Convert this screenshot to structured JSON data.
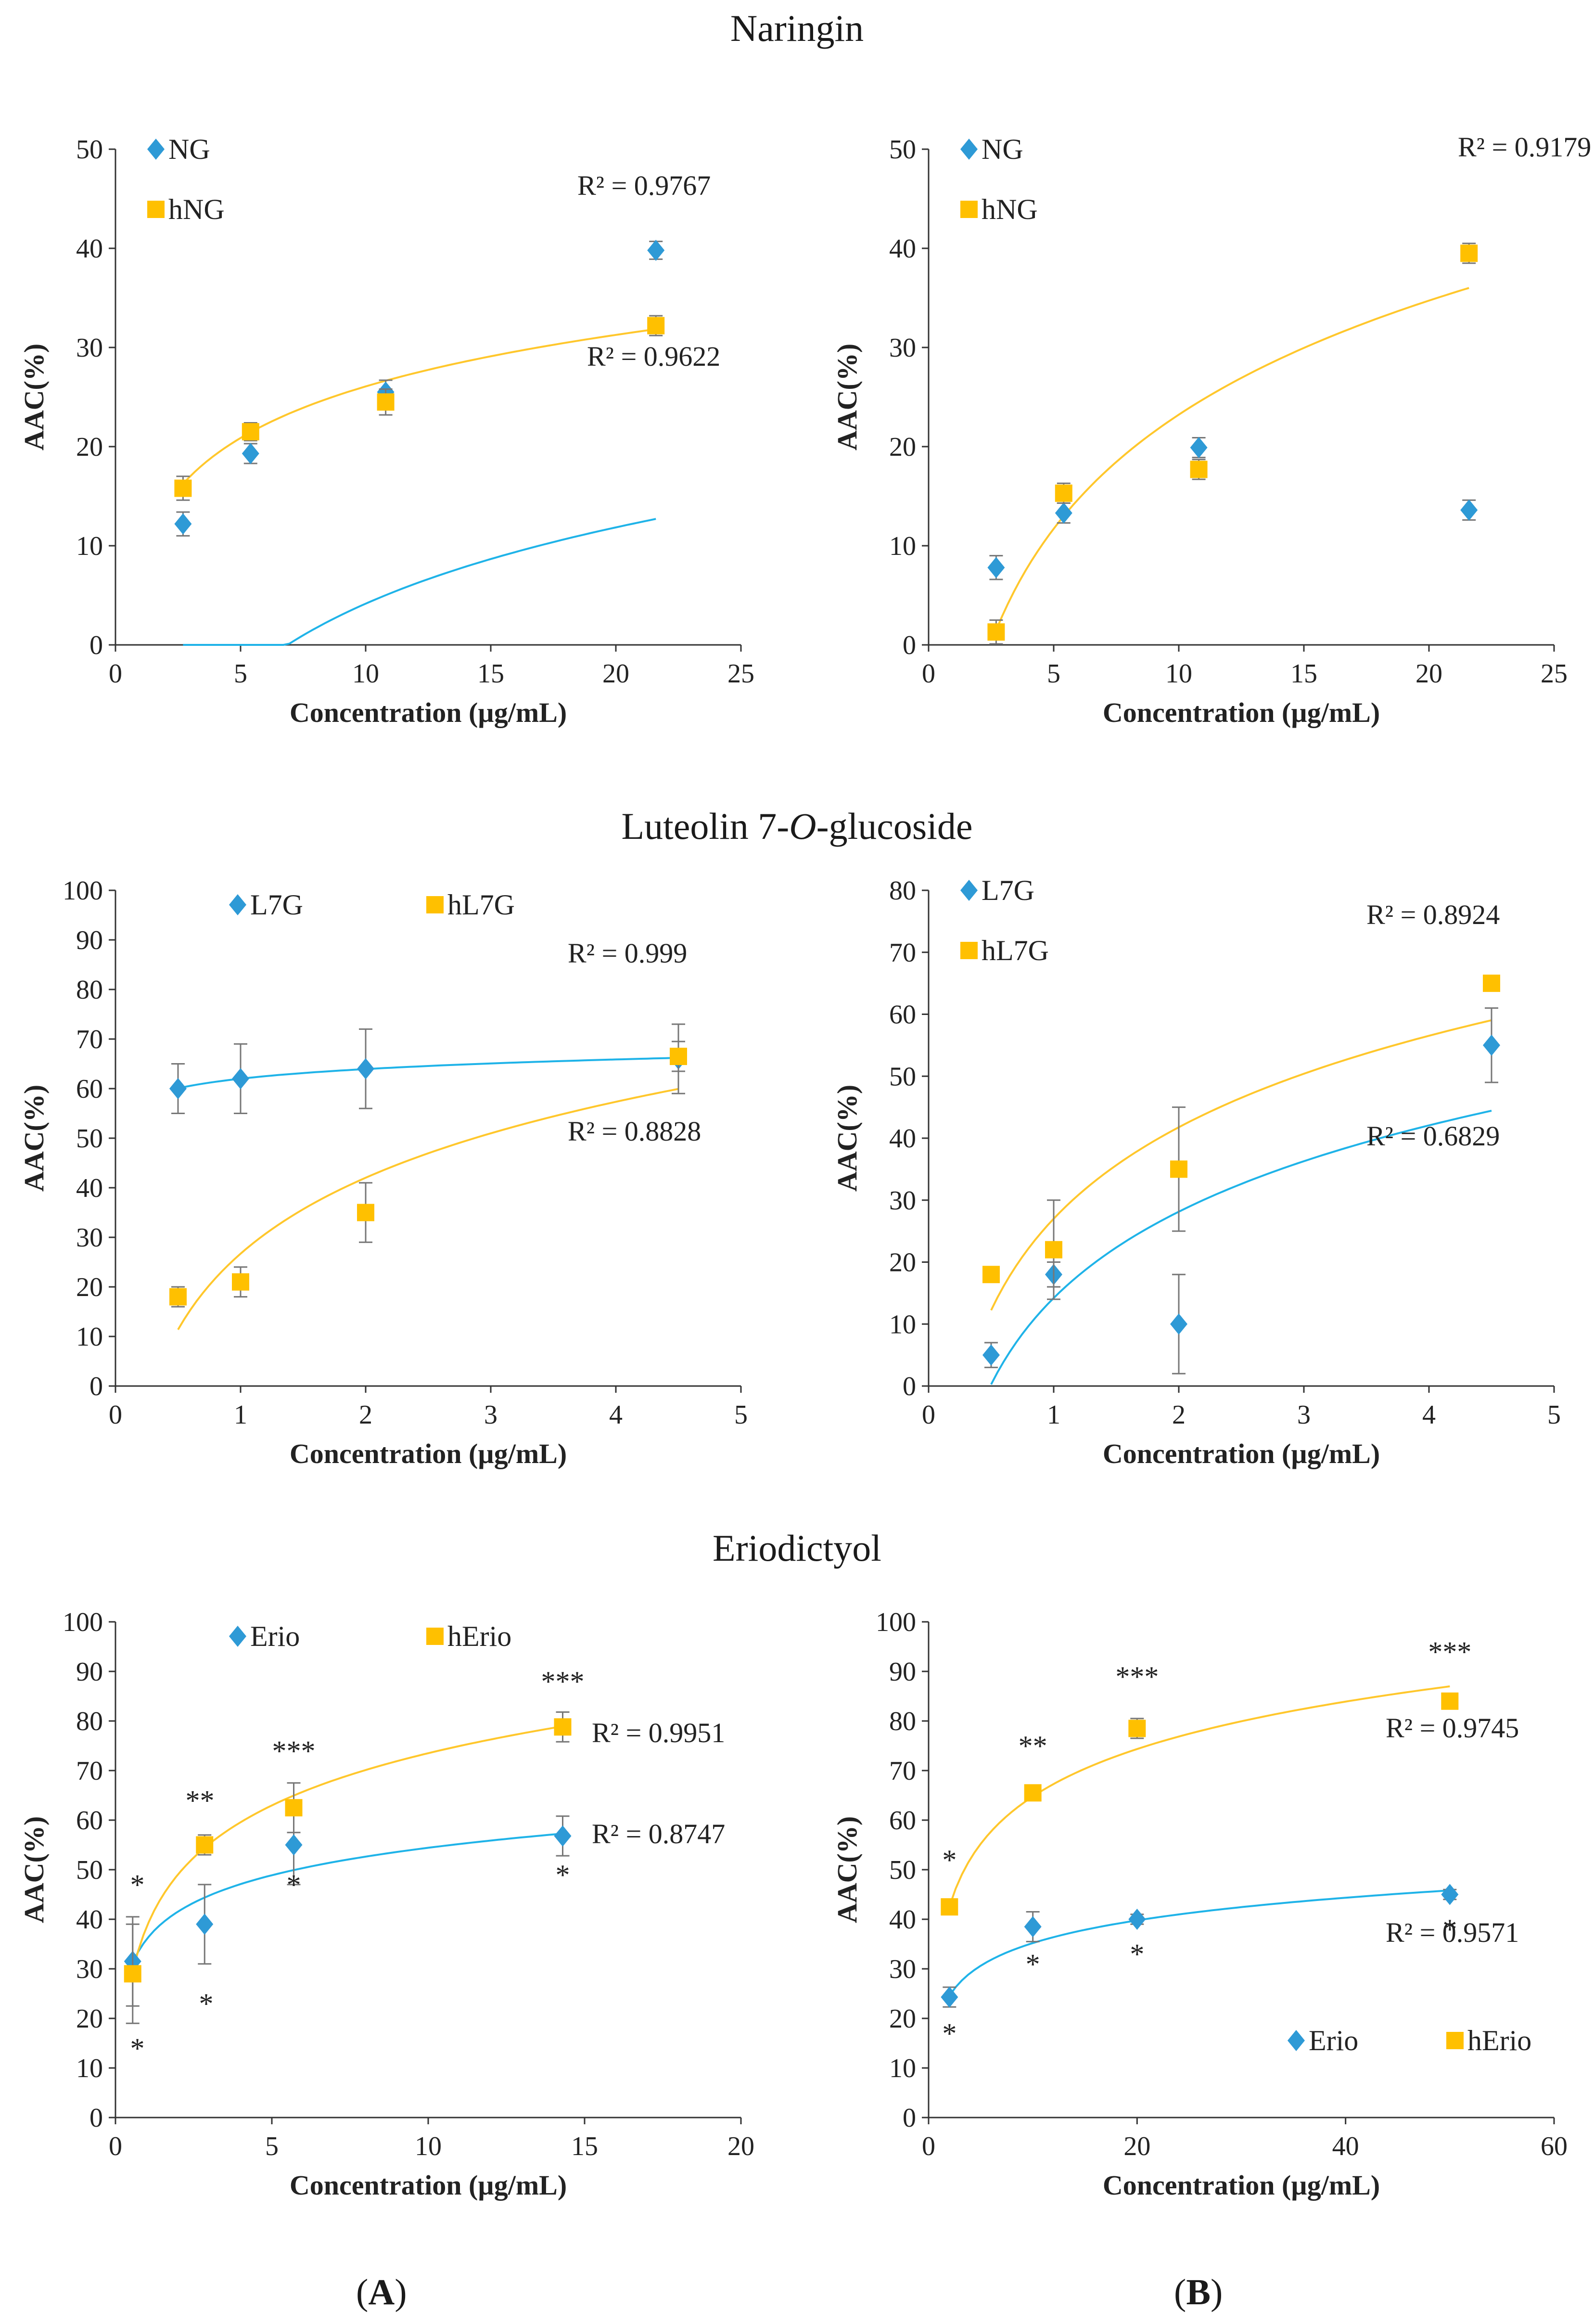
{
  "sections": [
    {
      "title": "Naringin"
    },
    {
      "title": "Luteolin 7-O-glucoside",
      "title_parts": [
        "Luteolin 7-",
        "O",
        "-glucoside"
      ]
    },
    {
      "title": "Eriodictyol"
    }
  ],
  "panel_letters": [
    "A",
    "B"
  ],
  "colors": {
    "blue": "#2E9AD6",
    "yellow": "#FFC000",
    "blue_fit": "#1FB3E8",
    "yellow_fit": "#FFC72C",
    "axis": "#333333",
    "error": "#777777"
  },
  "chart_data": [
    {
      "id": "naringin-A",
      "type": "scatter",
      "section": 0,
      "column": "A",
      "xlabel": "Concentration (µg/mL)",
      "ylabel": "AAC(%)",
      "xlim": [
        0,
        25
      ],
      "ylim": [
        0,
        50
      ],
      "xticks": [
        0,
        5,
        10,
        15,
        20,
        25
      ],
      "yticks": [
        0,
        10,
        20,
        30,
        40,
        50
      ],
      "legend_position": "top-left",
      "series": [
        {
          "name": "NG",
          "marker": "diamond",
          "color": "blue",
          "x": [
            2.7,
            5.4,
            10.8,
            21.6
          ],
          "y": [
            12.2,
            19.3,
            25.5,
            39.8
          ],
          "err": [
            1.2,
            1.0,
            1.2,
            0.9
          ],
          "r2": "R² = 0.9767",
          "fit": {
            "a": 11.1,
            "b": -21.4
          }
        },
        {
          "name": "hNG",
          "marker": "square",
          "color": "yellow",
          "x": [
            2.7,
            5.4,
            10.8,
            21.6
          ],
          "y": [
            15.8,
            21.5,
            24.5,
            32.2
          ],
          "err": [
            1.2,
            0.9,
            1.3,
            1.0
          ],
          "r2": "R² = 0.9622",
          "fit": {
            "a": 7.5,
            "b": 8.8
          }
        }
      ]
    },
    {
      "id": "naringin-B",
      "type": "scatter",
      "section": 0,
      "column": "B",
      "xlabel": "Concentration (µg/mL)",
      "ylabel": "AAC(%)",
      "xlim": [
        0,
        25
      ],
      "ylim": [
        0,
        50
      ],
      "xticks": [
        0,
        5,
        10,
        15,
        20,
        25
      ],
      "yticks": [
        0,
        10,
        20,
        30,
        40,
        50
      ],
      "legend_position": "top-left",
      "series": [
        {
          "name": "NG",
          "marker": "diamond",
          "color": "blue",
          "x": [
            2.7,
            5.4,
            10.8,
            21.6
          ],
          "y": [
            7.8,
            13.3,
            19.9,
            13.6
          ],
          "err": [
            1.2,
            1.0,
            1.0,
            1.0
          ]
        },
        {
          "name": "hNG",
          "marker": "square",
          "color": "yellow",
          "x": [
            2.7,
            5.4,
            10.8,
            21.6
          ],
          "y": [
            1.3,
            15.3,
            17.7,
            39.5
          ],
          "err": [
            1.2,
            1.0,
            1.0,
            1.0
          ],
          "r2": "R² = 0.9179",
          "fit": {
            "a": 16.6,
            "b": -15.0
          }
        }
      ]
    },
    {
      "id": "luteolin-A",
      "type": "scatter",
      "section": 1,
      "column": "A",
      "xlabel": "Concentration (µg/mL)",
      "ylabel": "AAC(%)",
      "xlim": [
        0,
        5
      ],
      "ylim": [
        0,
        100
      ],
      "xticks": [
        0,
        1,
        2,
        3,
        4,
        5
      ],
      "yticks": [
        0,
        10,
        20,
        30,
        40,
        50,
        60,
        70,
        80,
        90,
        100
      ],
      "legend_position": "top",
      "series": [
        {
          "name": "L7G",
          "marker": "diamond",
          "color": "blue",
          "x": [
            0.5,
            1.0,
            2.0,
            4.5
          ],
          "y": [
            60,
            62,
            64,
            66
          ],
          "err": [
            5,
            7,
            8,
            7
          ],
          "r2": "R² = 0.999",
          "fit": {
            "a": 2.8,
            "b": 62.0
          }
        },
        {
          "name": "hL7G",
          "marker": "square",
          "color": "yellow",
          "x": [
            0.5,
            1.0,
            2.0,
            4.5
          ],
          "y": [
            18,
            21,
            35,
            66.5
          ],
          "err": [
            2,
            3,
            6,
            3
          ],
          "r2": "R² = 0.8828",
          "fit": {
            "a": 22.1,
            "b": 26.7
          }
        }
      ]
    },
    {
      "id": "luteolin-B",
      "type": "scatter",
      "section": 1,
      "column": "B",
      "xlabel": "Concentration (µg/mL)",
      "ylabel": "AAC(%)",
      "xlim": [
        0,
        5
      ],
      "ylim": [
        0,
        80
      ],
      "xticks": [
        0,
        1,
        2,
        3,
        4,
        5
      ],
      "yticks": [
        0,
        10,
        20,
        30,
        40,
        50,
        60,
        70,
        80
      ],
      "legend_position": "top-left",
      "series": [
        {
          "name": "L7G",
          "marker": "diamond",
          "color": "blue",
          "x": [
            0.5,
            1.0,
            2.0,
            4.5
          ],
          "y": [
            5,
            18,
            10,
            55
          ],
          "err": [
            2,
            2,
            8,
            6
          ],
          "r2": "R² = 0.6829",
          "fit": {
            "a": 20.1,
            "b": 14.2
          }
        },
        {
          "name": "hL7G",
          "marker": "square",
          "color": "yellow",
          "x": [
            0.5,
            1.0,
            2.0,
            4.5
          ],
          "y": [
            18,
            22,
            35,
            65
          ],
          "err": [
            0,
            8,
            10,
            0
          ],
          "r2": "R² = 0.8924",
          "fit": {
            "a": 21.3,
            "b": 27.0
          }
        }
      ]
    },
    {
      "id": "eriodictyol-A",
      "type": "scatter",
      "section": 2,
      "column": "A",
      "xlabel": "Concentration (µg/mL)",
      "ylabel": "AAC(%)",
      "xlim": [
        0,
        20
      ],
      "ylim": [
        0,
        100
      ],
      "xticks": [
        0,
        5,
        10,
        15,
        20
      ],
      "yticks": [
        0,
        10,
        20,
        30,
        40,
        50,
        60,
        70,
        80,
        90,
        100
      ],
      "legend_position": "top",
      "series": [
        {
          "name": "Erio",
          "marker": "diamond",
          "color": "blue",
          "x": [
            0.55,
            2.85,
            5.7,
            14.3
          ],
          "y": [
            31.5,
            39,
            55,
            56.8
          ],
          "err": [
            9,
            8,
            8,
            4
          ],
          "r2": "R² = 0.8747",
          "fit": {
            "a": 8.0,
            "b": 36.0
          }
        },
        {
          "name": "hErio",
          "marker": "square",
          "color": "yellow",
          "x": [
            0.55,
            2.85,
            5.7,
            14.3
          ],
          "y": [
            29,
            55,
            62.5,
            78.8
          ],
          "err": [
            10,
            2,
            5,
            3
          ],
          "r2": "R² = 0.9951",
          "fit": {
            "a": 15.2,
            "b": 38.5
          }
        }
      ],
      "annotations": [
        {
          "text": "*",
          "x": 0.7,
          "y": 45
        },
        {
          "text": "*",
          "x": 0.7,
          "y": 12
        },
        {
          "text": "**",
          "x": 2.7,
          "y": 62
        },
        {
          "text": "*",
          "x": 2.9,
          "y": 21
        },
        {
          "text": "***",
          "x": 5.7,
          "y": 72
        },
        {
          "text": "*",
          "x": 5.7,
          "y": 45
        },
        {
          "text": "***",
          "x": 14.3,
          "y": 86
        },
        {
          "text": "*",
          "x": 14.3,
          "y": 47
        }
      ]
    },
    {
      "id": "eriodictyol-B",
      "type": "scatter",
      "section": 2,
      "column": "B",
      "xlabel": "Concentration (µg/mL)",
      "ylabel": "AAC(%)",
      "xlim": [
        0,
        60
      ],
      "ylim": [
        0,
        100
      ],
      "xticks": [
        0,
        20,
        40,
        60
      ],
      "yticks": [
        0,
        10,
        20,
        30,
        40,
        50,
        60,
        70,
        80,
        90,
        100
      ],
      "legend_position": "bottom-right",
      "series": [
        {
          "name": "Erio",
          "marker": "diamond",
          "color": "blue",
          "x": [
            2,
            10,
            20,
            50
          ],
          "y": [
            24.3,
            38.5,
            40,
            45
          ],
          "err": [
            2,
            3,
            1,
            1
          ],
          "r2": "R² = 0.9571",
          "fit": {
            "a": 6.6,
            "b": 20.0
          }
        },
        {
          "name": "hErio",
          "marker": "square",
          "color": "yellow",
          "x": [
            2,
            10,
            20,
            50
          ],
          "y": [
            42.5,
            65.5,
            78.5,
            84
          ],
          "err": [
            0,
            0,
            2,
            0
          ],
          "r2": "R² = 0.9745",
          "fit": {
            "a": 13.8,
            "b": 33.0
          }
        }
      ],
      "annotations": [
        {
          "text": "*",
          "x": 2,
          "y": 50
        },
        {
          "text": "*",
          "x": 2,
          "y": 15
        },
        {
          "text": "**",
          "x": 10,
          "y": 73
        },
        {
          "text": "*",
          "x": 10,
          "y": 29
        },
        {
          "text": "***",
          "x": 20,
          "y": 87
        },
        {
          "text": "*",
          "x": 20,
          "y": 31
        },
        {
          "text": "***",
          "x": 50,
          "y": 92
        },
        {
          "text": "*",
          "x": 50,
          "y": 36
        }
      ]
    }
  ]
}
